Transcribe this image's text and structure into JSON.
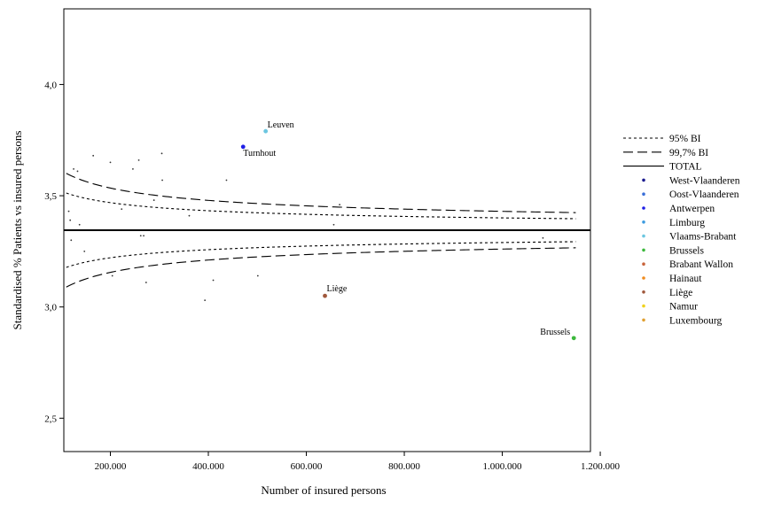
{
  "chart_data": {
    "type": "scatter",
    "title": "",
    "xlabel": "Number of insured persons",
    "ylabel": "Standardised % Patients vs insured persons",
    "xlim": [
      105000,
      1180000
    ],
    "ylim": [
      2.35,
      4.34
    ],
    "x_ticks": [
      200000,
      400000,
      600000,
      800000,
      1000000,
      1200000
    ],
    "x_tick_labels": [
      "200.000",
      "400.000",
      "600.000",
      "800.000",
      "1.000.000",
      "1.200.000"
    ],
    "y_ticks": [
      2.5,
      3.0,
      3.5,
      4.0
    ],
    "y_tick_labels": [
      "2,5",
      "3,0",
      "3,5",
      "4,0"
    ],
    "grid": false,
    "legend_position": "right",
    "total": 3.345,
    "limits": [
      {
        "name": "95% BI",
        "style": "dotted",
        "z": 1.96
      },
      {
        "name": "99,7% BI",
        "style": "dashed",
        "z": 3.0
      },
      {
        "name": "TOTAL",
        "style": "solid"
      }
    ],
    "band_constant": 0.000525,
    "band_x_range": [
      110000,
      1150000
    ],
    "categories": [
      {
        "name": "West-Vlaanderen",
        "color": "#1b1b8f"
      },
      {
        "name": "Oost-Vlaanderen",
        "color": "#3a6fd8"
      },
      {
        "name": "Antwerpen",
        "color": "#1f1fe6"
      },
      {
        "name": "Limburg",
        "color": "#3d9be0"
      },
      {
        "name": "Vlaams-Brabant",
        "color": "#6cc6e0"
      },
      {
        "name": "Brussels",
        "color": "#3cb83c"
      },
      {
        "name": "Brabant Wallon",
        "color": "#c8643c"
      },
      {
        "name": "Hainaut",
        "color": "#f08c1e"
      },
      {
        "name": "Liège",
        "color": "#a0583c"
      },
      {
        "name": "Namur",
        "color": "#f0d21e"
      },
      {
        "name": "Luxembourg",
        "color": "#e0a032"
      }
    ],
    "small_points": [
      [
        115000,
        3.43
      ],
      [
        118000,
        3.39
      ],
      [
        120000,
        3.3
      ],
      [
        125000,
        3.62
      ],
      [
        133000,
        3.61
      ],
      [
        137000,
        3.37
      ],
      [
        147000,
        3.25
      ],
      [
        165000,
        3.68
      ],
      [
        200000,
        3.65
      ],
      [
        204000,
        3.14
      ],
      [
        208000,
        3.53
      ],
      [
        223000,
        3.44
      ],
      [
        246000,
        3.62
      ],
      [
        258000,
        3.66
      ],
      [
        262000,
        3.32
      ],
      [
        268000,
        3.32
      ],
      [
        273000,
        3.11
      ],
      [
        289000,
        3.48
      ],
      [
        305000,
        3.69
      ],
      [
        306000,
        3.57
      ],
      [
        361000,
        3.41
      ],
      [
        393000,
        3.03
      ],
      [
        410000,
        3.12
      ],
      [
        437000,
        3.57
      ],
      [
        501000,
        3.14
      ],
      [
        656000,
        3.37
      ],
      [
        668000,
        3.46
      ],
      [
        1083000,
        3.31
      ]
    ],
    "labeled_points": [
      {
        "label": "Leuven",
        "x": 517000,
        "y": 3.79,
        "color": "#6cc6e0",
        "anchor": "start",
        "dx": 2,
        "dy": -4
      },
      {
        "label": "Turnhout",
        "x": 471000,
        "y": 3.72,
        "color": "#1f1fe6",
        "anchor": "start",
        "dx": 0,
        "dy": 10
      },
      {
        "label": "Liège",
        "x": 638000,
        "y": 3.05,
        "color": "#a0583c",
        "anchor": "start",
        "dx": 2,
        "dy": -5
      },
      {
        "label": "Brussels",
        "x": 1146000,
        "y": 2.86,
        "color": "#3cb83c",
        "anchor": "end",
        "dx": -4,
        "dy": -4
      }
    ]
  }
}
